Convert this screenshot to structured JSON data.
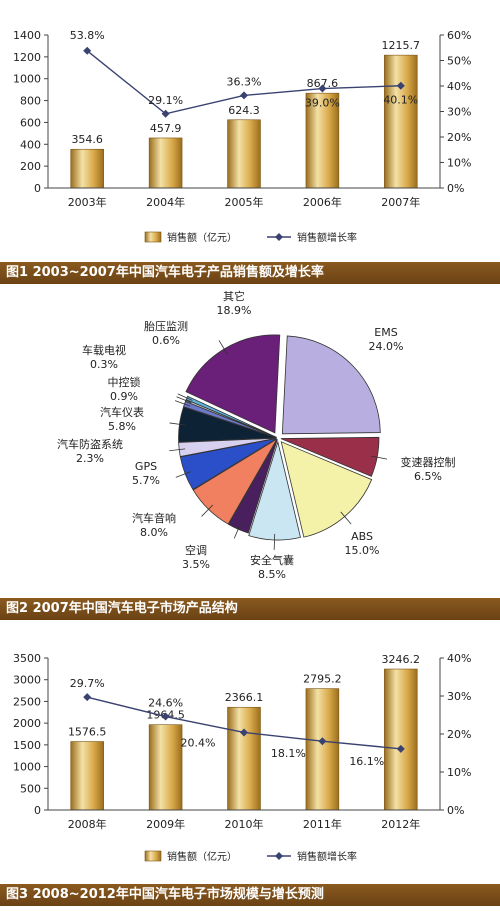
{
  "chart_data": [
    {
      "type": "bar",
      "title": "图1 2003~2007年中国汽车电子产品销售额及增长率",
      "categories": [
        "2003年",
        "2004年",
        "2005年",
        "2006年",
        "2007年"
      ],
      "series": [
        {
          "name": "销售额（亿元）",
          "type": "bar",
          "axis": "left",
          "values": [
            354.6,
            457.9,
            624.3,
            867.6,
            1215.7
          ],
          "labels": [
            "354.6",
            "457.9",
            "624.3",
            "867.6",
            "1215.7"
          ]
        },
        {
          "name": "销售额增长率",
          "type": "line",
          "axis": "right",
          "values": [
            53.8,
            29.1,
            36.3,
            39.0,
            40.1
          ],
          "labels": [
            "53.8%",
            "29.1%",
            "36.3%",
            "39.0%",
            "40.1%"
          ]
        }
      ],
      "y_left": {
        "min": 0,
        "max": 1400,
        "ticks": [
          "0",
          "200",
          "400",
          "600",
          "800",
          "1000",
          "1200",
          "1400"
        ]
      },
      "y_right": {
        "min": 0,
        "max": 60,
        "ticks": [
          "0%",
          "10%",
          "20%",
          "30%",
          "40%",
          "50%",
          "60%"
        ]
      },
      "legend": {
        "bar": "销售额（亿元）",
        "line": "销售额增长率",
        "placement": "bottom"
      },
      "grid": false
    },
    {
      "type": "pie",
      "title": "图2 2007年中国汽车电子市场产品结构",
      "slices": [
        {
          "label": "EMS",
          "value": 24.0,
          "value_label": "24.0%",
          "color": "#b8aee0"
        },
        {
          "label": "变速器控制",
          "value": 6.5,
          "value_label": "6.5%",
          "color": "#9a2f4a"
        },
        {
          "label": "ABS",
          "value": 15.0,
          "value_label": "15.0%",
          "color": "#f4f1a8"
        },
        {
          "label": "安全气囊",
          "value": 8.5,
          "value_label": "8.5%",
          "color": "#c9e6f2"
        },
        {
          "label": "空调",
          "value": 3.5,
          "value_label": "3.5%",
          "color": "#4a1f5e"
        },
        {
          "label": "汽车音响",
          "value": 8.0,
          "value_label": "8.0%",
          "color": "#f08060"
        },
        {
          "label": "GPS",
          "value": 5.7,
          "value_label": "5.7%",
          "color": "#2a4fc8"
        },
        {
          "label": "汽车防盗系统",
          "value": 2.3,
          "value_label": "2.3%",
          "color": "#d8d0ef"
        },
        {
          "label": "汽车仪表",
          "value": 5.8,
          "value_label": "5.8%",
          "color": "#0e2236"
        },
        {
          "label": "中控锁",
          "value": 0.9,
          "value_label": "0.9%",
          "color": "#6c78c8"
        },
        {
          "label": "车载电视",
          "value": 0.3,
          "value_label": "0.3%",
          "color": "#e0e0e0"
        },
        {
          "label": "胎压监测",
          "value": 0.6,
          "value_label": "0.6%",
          "color": "#5fb0d8"
        },
        {
          "label": "其它",
          "value": 18.9,
          "value_label": "18.9%",
          "color": "#6a1f78"
        }
      ]
    },
    {
      "type": "bar",
      "title": "图3 2008~2012年中国汽车电子市场规模与增长预测",
      "categories": [
        "2008年",
        "2009年",
        "2010年",
        "2011年",
        "2012年"
      ],
      "series": [
        {
          "name": "销售额（亿元）",
          "type": "bar",
          "axis": "left",
          "values": [
            1576.5,
            1964.5,
            2366.1,
            2795.2,
            3246.2
          ],
          "labels": [
            "1576.5",
            "1964.5",
            "2366.1",
            "2795.2",
            "3246.2"
          ]
        },
        {
          "name": "销售额增长率",
          "type": "line",
          "axis": "right",
          "values": [
            29.7,
            24.6,
            20.4,
            18.1,
            16.1
          ],
          "labels": [
            "29.7%",
            "24.6%",
            "20.4%",
            "18.1%",
            "16.1%"
          ]
        }
      ],
      "y_left": {
        "min": 0,
        "max": 3500,
        "ticks": [
          "0",
          "500",
          "1000",
          "1500",
          "2000",
          "2500",
          "3000",
          "3500"
        ]
      },
      "y_right": {
        "min": 0,
        "max": 40,
        "ticks": [
          "0%",
          "10%",
          "20%",
          "30%",
          "40%"
        ]
      },
      "legend": {
        "bar": "销售额（亿元）",
        "line": "销售额增长率",
        "placement": "bottom"
      },
      "grid": false
    }
  ],
  "colors": {
    "bar_light": "#f3e1a6",
    "bar_dark": "#9a6d1c",
    "line": "#3a4270",
    "caption_bg": "#7a4c19"
  }
}
